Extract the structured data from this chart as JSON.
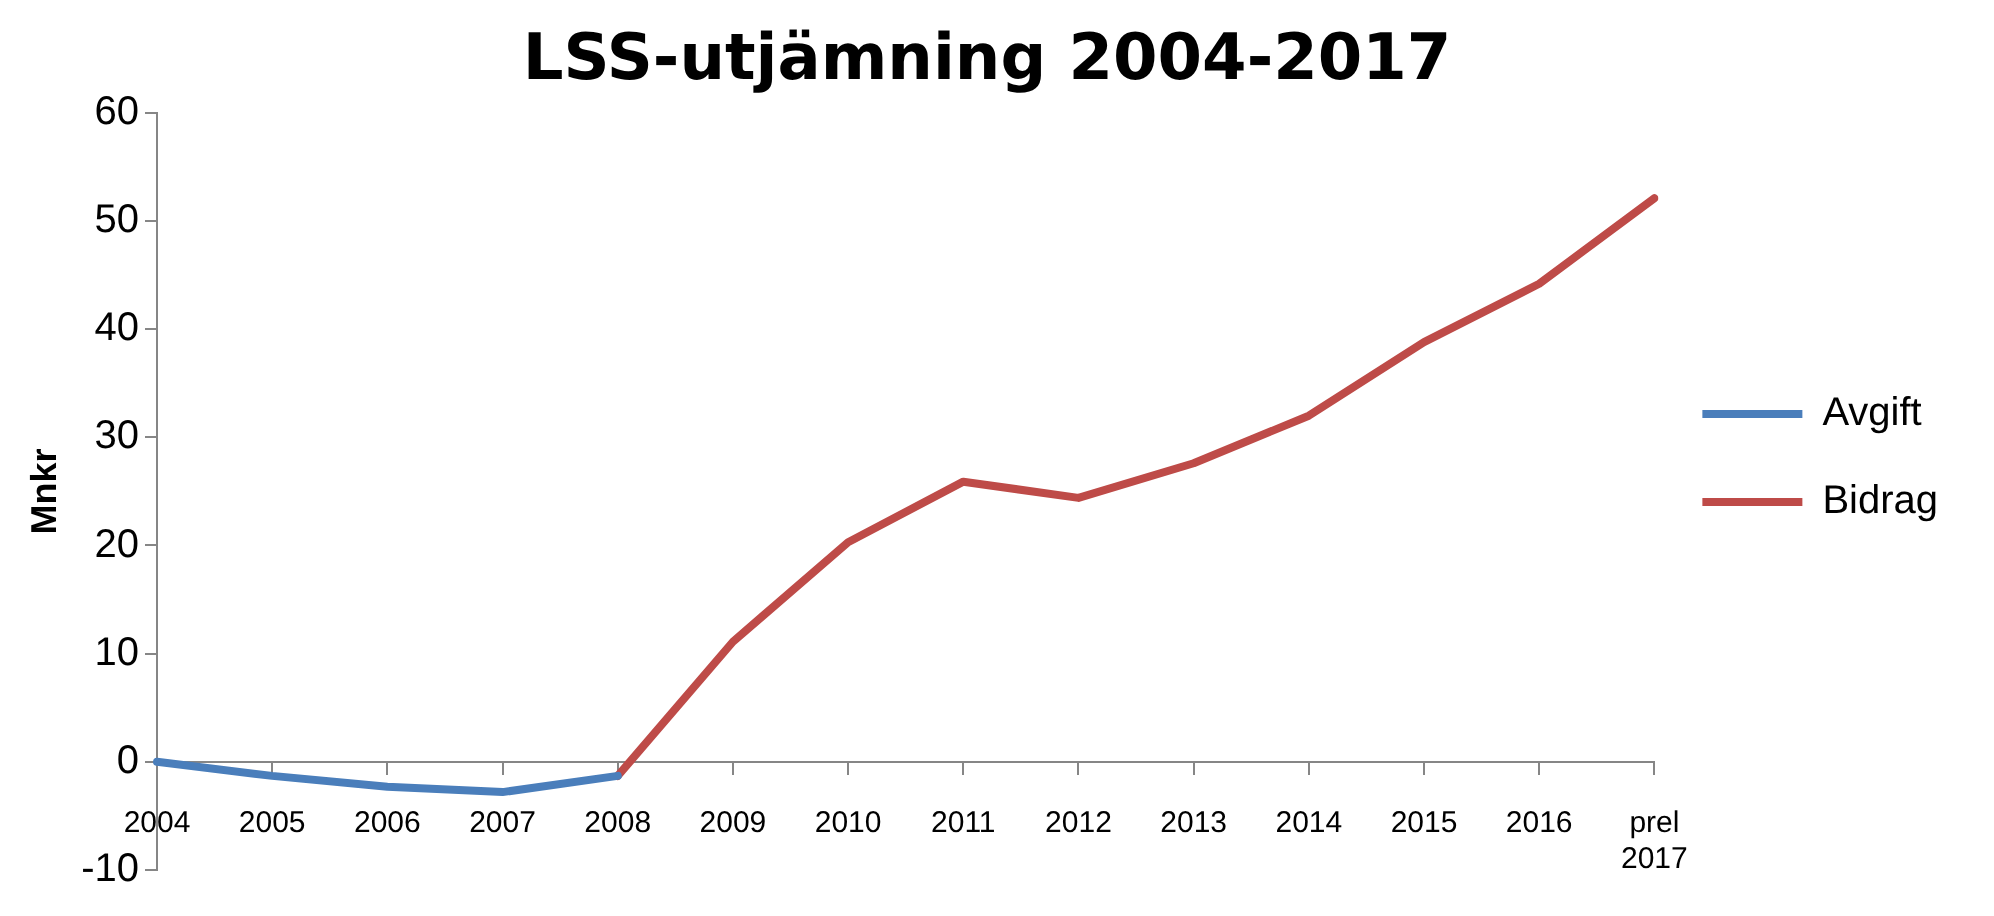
{
  "chart_data": {
    "type": "line",
    "title": "LSS-utjämning 2004-2017",
    "ylabel": "Mnkr",
    "categories": [
      "2004",
      "2005",
      "2006",
      "2007",
      "2008",
      "2009",
      "2010",
      "2011",
      "2012",
      "2013",
      "2014",
      "2015",
      "2016",
      "prel\n2017"
    ],
    "series": [
      {
        "name": "Avgift",
        "color": "#4a7ebb",
        "values": [
          0,
          -1.3,
          -2.3,
          -2.8,
          -1.3,
          null,
          null,
          null,
          null,
          null,
          null,
          null,
          null,
          null
        ]
      },
      {
        "name": "Bidrag",
        "color": "#be4b48",
        "values": [
          null,
          null,
          null,
          null,
          -1.3,
          11.1,
          20.3,
          25.9,
          24.4,
          27.6,
          32.0,
          38.8,
          44.2,
          52.1
        ]
      }
    ],
    "ylim": [
      -10,
      60
    ],
    "yticks": [
      -10,
      0,
      10,
      20,
      30,
      40,
      50,
      60
    ],
    "grid": false,
    "legend": "right",
    "marker": "none",
    "line_style": "solid"
  }
}
